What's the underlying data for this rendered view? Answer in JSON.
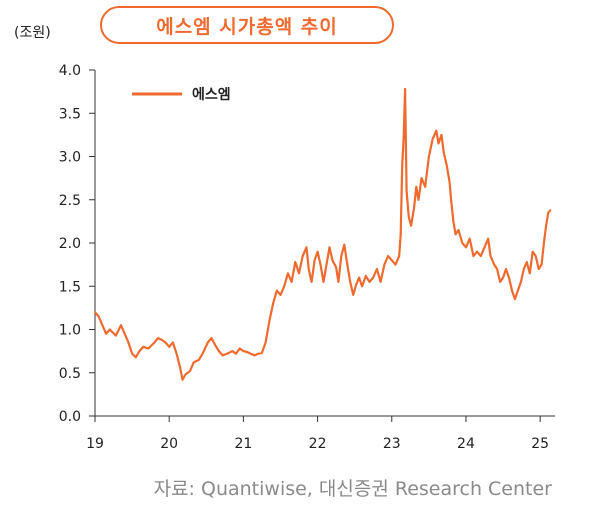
{
  "title": "에스엠 시가총액 추이",
  "unit_label": "(조원)",
  "source": "자료: Quantiwise, 대신증권 Research Center",
  "colors": {
    "series": "#ef6a2e",
    "axis": "#333333",
    "title": "#ef6a2e"
  },
  "chart_data": {
    "type": "line",
    "title": "에스엠 시가총액 추이",
    "ylabel": "(조원)",
    "xlabel": "",
    "ylim": [
      0,
      4.0
    ],
    "xlim": [
      2019.0,
      2025.2
    ],
    "y_ticks": [
      "0.0",
      "0.5",
      "1.0",
      "1.5",
      "2.0",
      "2.5",
      "3.0",
      "3.5",
      "4.0"
    ],
    "x_ticks": [
      {
        "value": 2019,
        "label": "19"
      },
      {
        "value": 2020,
        "label": "20"
      },
      {
        "value": 2021,
        "label": "21"
      },
      {
        "value": 2022,
        "label": "22"
      },
      {
        "value": 2023,
        "label": "23"
      },
      {
        "value": 2024,
        "label": "24"
      },
      {
        "value": 2025,
        "label": "25"
      }
    ],
    "legend_position": "top-left",
    "grid": false,
    "series": [
      {
        "name": "에스엠",
        "points": [
          [
            2019.0,
            1.2
          ],
          [
            2019.05,
            1.15
          ],
          [
            2019.1,
            1.05
          ],
          [
            2019.15,
            0.95
          ],
          [
            2019.2,
            1.0
          ],
          [
            2019.28,
            0.93
          ],
          [
            2019.35,
            1.05
          ],
          [
            2019.4,
            0.95
          ],
          [
            2019.45,
            0.85
          ],
          [
            2019.5,
            0.72
          ],
          [
            2019.55,
            0.68
          ],
          [
            2019.6,
            0.75
          ],
          [
            2019.65,
            0.8
          ],
          [
            2019.72,
            0.78
          ],
          [
            2019.8,
            0.85
          ],
          [
            2019.85,
            0.9
          ],
          [
            2019.9,
            0.88
          ],
          [
            2019.95,
            0.85
          ],
          [
            2020.0,
            0.8
          ],
          [
            2020.05,
            0.85
          ],
          [
            2020.1,
            0.72
          ],
          [
            2020.15,
            0.55
          ],
          [
            2020.18,
            0.42
          ],
          [
            2020.22,
            0.48
          ],
          [
            2020.28,
            0.52
          ],
          [
            2020.33,
            0.62
          ],
          [
            2020.4,
            0.65
          ],
          [
            2020.45,
            0.72
          ],
          [
            2020.52,
            0.85
          ],
          [
            2020.57,
            0.9
          ],
          [
            2020.62,
            0.82
          ],
          [
            2020.67,
            0.75
          ],
          [
            2020.72,
            0.7
          ],
          [
            2020.78,
            0.72
          ],
          [
            2020.85,
            0.75
          ],
          [
            2020.9,
            0.72
          ],
          [
            2020.95,
            0.78
          ],
          [
            2021.0,
            0.75
          ],
          [
            2021.05,
            0.74
          ],
          [
            2021.1,
            0.72
          ],
          [
            2021.15,
            0.7
          ],
          [
            2021.2,
            0.72
          ],
          [
            2021.25,
            0.73
          ],
          [
            2021.3,
            0.85
          ],
          [
            2021.35,
            1.1
          ],
          [
            2021.4,
            1.3
          ],
          [
            2021.45,
            1.45
          ],
          [
            2021.5,
            1.4
          ],
          [
            2021.55,
            1.5
          ],
          [
            2021.6,
            1.65
          ],
          [
            2021.65,
            1.55
          ],
          [
            2021.7,
            1.78
          ],
          [
            2021.75,
            1.65
          ],
          [
            2021.8,
            1.85
          ],
          [
            2021.85,
            1.95
          ],
          [
            2021.88,
            1.7
          ],
          [
            2021.92,
            1.55
          ],
          [
            2021.96,
            1.8
          ],
          [
            2022.0,
            1.9
          ],
          [
            2022.04,
            1.75
          ],
          [
            2022.08,
            1.55
          ],
          [
            2022.12,
            1.75
          ],
          [
            2022.16,
            1.95
          ],
          [
            2022.2,
            1.8
          ],
          [
            2022.25,
            1.72
          ],
          [
            2022.28,
            1.55
          ],
          [
            2022.32,
            1.85
          ],
          [
            2022.36,
            1.98
          ],
          [
            2022.4,
            1.75
          ],
          [
            2022.44,
            1.55
          ],
          [
            2022.48,
            1.4
          ],
          [
            2022.52,
            1.52
          ],
          [
            2022.56,
            1.6
          ],
          [
            2022.6,
            1.5
          ],
          [
            2022.65,
            1.62
          ],
          [
            2022.7,
            1.55
          ],
          [
            2022.75,
            1.6
          ],
          [
            2022.8,
            1.7
          ],
          [
            2022.85,
            1.55
          ],
          [
            2022.9,
            1.75
          ],
          [
            2022.95,
            1.85
          ],
          [
            2023.0,
            1.8
          ],
          [
            2023.05,
            1.75
          ],
          [
            2023.1,
            1.85
          ],
          [
            2023.12,
            2.1
          ],
          [
            2023.14,
            2.9
          ],
          [
            2023.16,
            3.2
          ],
          [
            2023.18,
            3.78
          ],
          [
            2023.2,
            2.6
          ],
          [
            2023.23,
            2.3
          ],
          [
            2023.26,
            2.2
          ],
          [
            2023.3,
            2.4
          ],
          [
            2023.33,
            2.65
          ],
          [
            2023.36,
            2.5
          ],
          [
            2023.4,
            2.75
          ],
          [
            2023.45,
            2.65
          ],
          [
            2023.5,
            3.0
          ],
          [
            2023.55,
            3.2
          ],
          [
            2023.6,
            3.3
          ],
          [
            2023.63,
            3.15
          ],
          [
            2023.67,
            3.25
          ],
          [
            2023.7,
            3.05
          ],
          [
            2023.74,
            2.9
          ],
          [
            2023.78,
            2.7
          ],
          [
            2023.8,
            2.5
          ],
          [
            2023.83,
            2.25
          ],
          [
            2023.86,
            2.1
          ],
          [
            2023.9,
            2.15
          ],
          [
            2023.95,
            2.0
          ],
          [
            2024.0,
            1.95
          ],
          [
            2024.05,
            2.05
          ],
          [
            2024.1,
            1.85
          ],
          [
            2024.15,
            1.9
          ],
          [
            2024.2,
            1.85
          ],
          [
            2024.25,
            1.95
          ],
          [
            2024.3,
            2.05
          ],
          [
            2024.33,
            1.85
          ],
          [
            2024.38,
            1.75
          ],
          [
            2024.42,
            1.7
          ],
          [
            2024.46,
            1.55
          ],
          [
            2024.5,
            1.6
          ],
          [
            2024.54,
            1.7
          ],
          [
            2024.58,
            1.6
          ],
          [
            2024.62,
            1.45
          ],
          [
            2024.66,
            1.35
          ],
          [
            2024.7,
            1.45
          ],
          [
            2024.74,
            1.55
          ],
          [
            2024.78,
            1.7
          ],
          [
            2024.82,
            1.78
          ],
          [
            2024.86,
            1.65
          ],
          [
            2024.9,
            1.9
          ],
          [
            2024.94,
            1.85
          ],
          [
            2024.98,
            1.7
          ],
          [
            2025.02,
            1.75
          ],
          [
            2025.05,
            2.0
          ],
          [
            2025.08,
            2.2
          ],
          [
            2025.11,
            2.35
          ],
          [
            2025.14,
            2.38
          ]
        ]
      }
    ]
  }
}
